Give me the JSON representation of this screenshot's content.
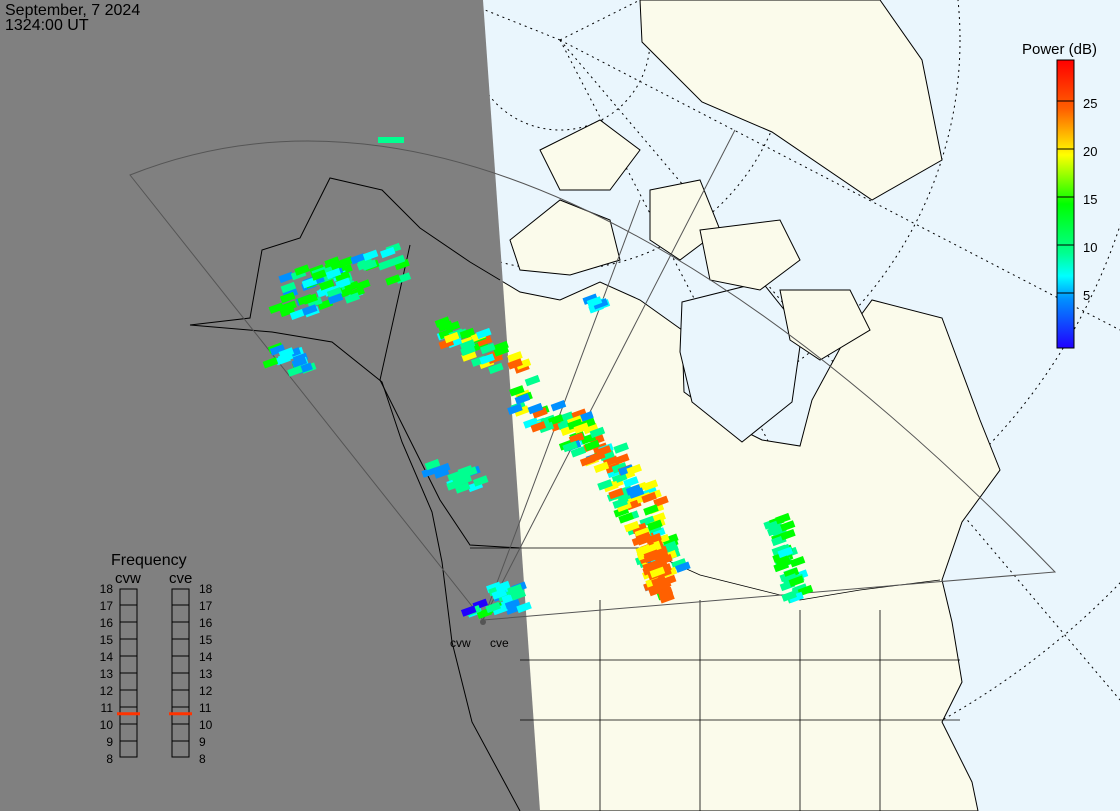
{
  "header": {
    "date": "September, 7 2024",
    "time": "1324:00 UT"
  },
  "colorbar": {
    "title": "Power (dB)",
    "range": [
      0,
      30
    ],
    "ticks": [
      "5",
      "10",
      "15",
      "20",
      "25"
    ],
    "tick_values": [
      5,
      10,
      15,
      20,
      25
    ]
  },
  "frequency": {
    "title": "Frequency",
    "radars": [
      {
        "name": "cvw",
        "value_mhz": 10.6
      },
      {
        "name": "cve",
        "value_mhz": 10.6
      }
    ],
    "ticks": [
      "18",
      "17",
      "16",
      "15",
      "14",
      "13",
      "12",
      "11",
      "10",
      "9",
      "8"
    ],
    "range": [
      8,
      18
    ],
    "indicator_color": "#ff3300"
  },
  "radar_labels": {
    "west": "cvw",
    "east": "cve"
  },
  "colors": {
    "night": "#808080",
    "ocean": "#eaf6fd",
    "land": "#fbfbeb"
  }
}
